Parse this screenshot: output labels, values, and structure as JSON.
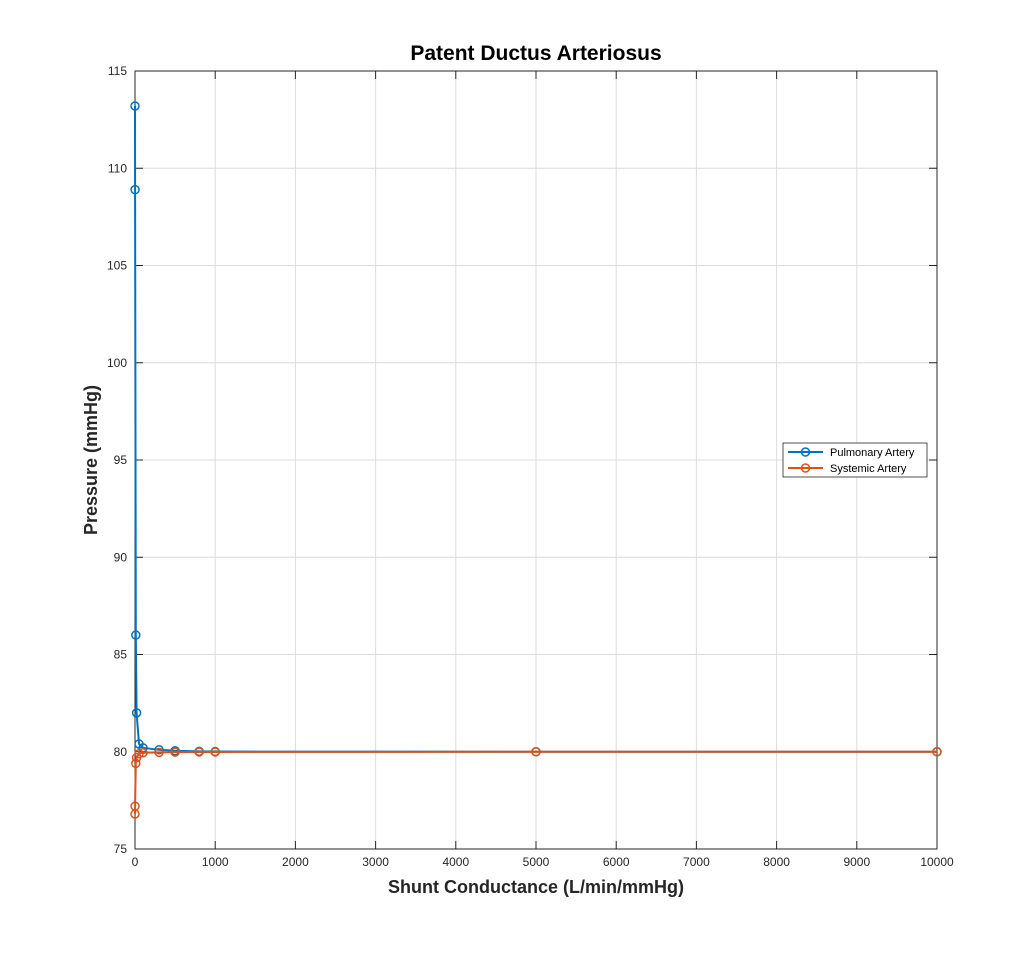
{
  "chart_data": {
    "type": "line",
    "title": "Patent Ductus Arteriosus",
    "xlabel": "Shunt Conductance (L/min/mmHg)",
    "ylabel": "Pressure (mmHg)",
    "xlim": [
      0,
      10000
    ],
    "ylim": [
      75,
      115
    ],
    "xticks": [
      0,
      1000,
      2000,
      3000,
      4000,
      5000,
      6000,
      7000,
      8000,
      9000,
      10000
    ],
    "yticks": [
      75,
      80,
      85,
      90,
      95,
      100,
      105,
      110,
      115
    ],
    "grid": true,
    "box": true,
    "legend_position": "right",
    "series": [
      {
        "name": "Pulmonary Artery",
        "color": "#0072BD",
        "marker": "circle",
        "x": [
          0.1,
          1,
          10,
          20,
          50,
          100,
          300,
          500,
          800,
          1000,
          5000,
          10000
        ],
        "y": [
          113.2,
          108.9,
          86.0,
          82.0,
          80.4,
          80.2,
          80.1,
          80.05,
          80.02,
          80.01,
          80.0,
          80.0
        ]
      },
      {
        "name": "Systemic Artery",
        "color": "#D95319",
        "marker": "circle",
        "x": [
          0.1,
          1,
          10,
          20,
          50,
          100,
          300,
          500,
          800,
          1000,
          5000,
          10000
        ],
        "y": [
          76.8,
          77.2,
          79.4,
          79.7,
          79.9,
          79.95,
          79.97,
          79.98,
          79.99,
          79.99,
          80.0,
          80.0
        ]
      }
    ]
  }
}
